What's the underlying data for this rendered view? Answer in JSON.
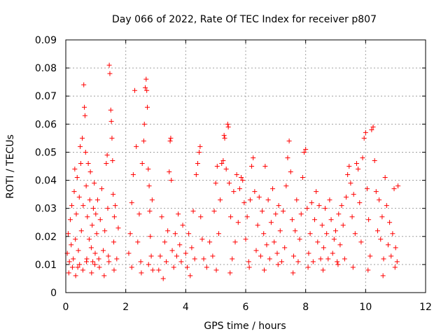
{
  "chart_data": {
    "type": "scatter",
    "title": "Day 066 of 2022, Rate Of TEC Index for receiver p807",
    "xlabel": "GPS time / hours",
    "ylabel": "ROTI / TECUs",
    "xlim": [
      0,
      12
    ],
    "ylim": [
      0,
      0.09
    ],
    "xticks": [
      "0",
      "2",
      "4",
      "6",
      "8",
      "10",
      "12"
    ],
    "yticks": [
      "0",
      "0.01",
      "0.02",
      "0.03",
      "0.04",
      "0.05",
      "0.06",
      "0.07",
      "0.08",
      "0.09"
    ],
    "grid": true,
    "marker": "+",
    "color": "#ff0000",
    "series": [
      {
        "name": "ROTI",
        "points": [
          [
            0.05,
            0.014
          ],
          [
            0.08,
            0.021
          ],
          [
            0.12,
            0.011
          ],
          [
            0.15,
            0.026
          ],
          [
            0.18,
            0.017
          ],
          [
            0.2,
            0.031
          ],
          [
            0.25,
            0.012
          ],
          [
            0.28,
            0.036
          ],
          [
            0.3,
            0.044
          ],
          [
            0.32,
            0.019
          ],
          [
            0.35,
            0.028
          ],
          [
            0.38,
            0.041
          ],
          [
            0.4,
            0.009
          ],
          [
            0.42,
            0.015
          ],
          [
            0.45,
            0.034
          ],
          [
            0.48,
            0.052
          ],
          [
            0.5,
            0.046
          ],
          [
            0.52,
            0.022
          ],
          [
            0.55,
            0.055
          ],
          [
            0.58,
            0.031
          ],
          [
            0.6,
            0.074
          ],
          [
            0.62,
            0.066
          ],
          [
            0.64,
            0.063
          ],
          [
            0.66,
            0.05
          ],
          [
            0.68,
            0.038
          ],
          [
            0.7,
            0.012
          ],
          [
            0.72,
            0.027
          ],
          [
            0.75,
            0.046
          ],
          [
            0.78,
            0.019
          ],
          [
            0.8,
            0.033
          ],
          [
            0.82,
            0.043
          ],
          [
            0.85,
            0.016
          ],
          [
            0.88,
            0.024
          ],
          [
            0.9,
            0.011
          ],
          [
            0.92,
            0.03
          ],
          [
            0.95,
            0.039
          ],
          [
            0.98,
            0.014
          ],
          [
            1.0,
            0.028
          ],
          [
            1.03,
            0.021
          ],
          [
            1.06,
            0.033
          ],
          [
            1.1,
            0.012
          ],
          [
            1.15,
            0.026
          ],
          [
            1.2,
            0.037
          ],
          [
            1.25,
            0.015
          ],
          [
            1.3,
            0.022
          ],
          [
            1.35,
            0.046
          ],
          [
            1.38,
            0.049
          ],
          [
            1.4,
            0.03
          ],
          [
            1.42,
            0.013
          ],
          [
            1.45,
            0.081
          ],
          [
            1.47,
            0.078
          ],
          [
            1.5,
            0.065
          ],
          [
            1.52,
            0.061
          ],
          [
            1.54,
            0.055
          ],
          [
            1.56,
            0.047
          ],
          [
            1.58,
            0.035
          ],
          [
            1.6,
            0.018
          ],
          [
            1.62,
            0.027
          ],
          [
            1.65,
            0.031
          ],
          [
            1.7,
            0.012
          ],
          [
            1.75,
            0.023
          ],
          [
            0.1,
            0.007
          ],
          [
            0.22,
            0.009
          ],
          [
            0.33,
            0.006
          ],
          [
            0.46,
            0.01
          ],
          [
            0.57,
            0.008
          ],
          [
            0.69,
            0.011
          ],
          [
            0.86,
            0.007
          ],
          [
            0.97,
            0.01
          ],
          [
            1.12,
            0.009
          ],
          [
            1.28,
            0.006
          ],
          [
            1.44,
            0.011
          ],
          [
            1.61,
            0.008
          ],
          [
            2.1,
            0.014
          ],
          [
            2.15,
            0.021
          ],
          [
            2.2,
            0.032
          ],
          [
            2.25,
            0.042
          ],
          [
            2.3,
            0.072
          ],
          [
            2.35,
            0.052
          ],
          [
            2.4,
            0.018
          ],
          [
            2.45,
            0.028
          ],
          [
            2.5,
            0.011
          ],
          [
            2.55,
            0.046
          ],
          [
            2.6,
            0.054
          ],
          [
            2.62,
            0.06
          ],
          [
            2.65,
            0.073
          ],
          [
            2.68,
            0.076
          ],
          [
            2.7,
            0.072
          ],
          [
            2.72,
            0.066
          ],
          [
            2.75,
            0.044
          ],
          [
            2.78,
            0.038
          ],
          [
            2.8,
            0.029
          ],
          [
            2.82,
            0.02
          ],
          [
            2.85,
            0.013
          ],
          [
            2.88,
            0.033
          ],
          [
            2.9,
            0.008
          ],
          [
            2.2,
            0.009
          ],
          [
            2.52,
            0.007
          ],
          [
            2.76,
            0.01
          ],
          [
            3.1,
            0.008
          ],
          [
            3.15,
            0.013
          ],
          [
            3.2,
            0.027
          ],
          [
            3.25,
            0.005
          ],
          [
            3.3,
            0.018
          ],
          [
            3.35,
            0.011
          ],
          [
            3.4,
            0.022
          ],
          [
            3.45,
            0.043
          ],
          [
            3.48,
            0.054
          ],
          [
            3.5,
            0.055
          ],
          [
            3.52,
            0.04
          ],
          [
            3.55,
            0.015
          ],
          [
            3.6,
            0.009
          ],
          [
            3.65,
            0.021
          ],
          [
            3.7,
            0.013
          ],
          [
            3.75,
            0.028
          ],
          [
            3.8,
            0.017
          ],
          [
            3.85,
            0.011
          ],
          [
            3.9,
            0.024
          ],
          [
            4.0,
            0.014
          ],
          [
            4.05,
            0.009
          ],
          [
            4.1,
            0.021
          ],
          [
            4.15,
            0.006
          ],
          [
            4.2,
            0.016
          ],
          [
            4.25,
            0.029
          ],
          [
            4.3,
            0.012
          ],
          [
            4.35,
            0.042
          ],
          [
            4.4,
            0.046
          ],
          [
            4.45,
            0.05
          ],
          [
            4.48,
            0.052
          ],
          [
            4.5,
            0.027
          ],
          [
            4.55,
            0.019
          ],
          [
            4.6,
            0.012
          ],
          [
            4.7,
            0.009
          ],
          [
            4.8,
            0.018
          ],
          [
            4.9,
            0.013
          ],
          [
            4.95,
            0.029
          ],
          [
            5.0,
            0.039
          ],
          [
            5.05,
            0.045
          ],
          [
            5.1,
            0.021
          ],
          [
            5.15,
            0.033
          ],
          [
            5.2,
            0.046
          ],
          [
            5.25,
            0.047
          ],
          [
            5.28,
            0.056
          ],
          [
            5.3,
            0.055
          ],
          [
            5.35,
            0.044
          ],
          [
            5.4,
            0.06
          ],
          [
            5.42,
            0.059
          ],
          [
            5.45,
            0.039
          ],
          [
            5.5,
            0.027
          ],
          [
            5.55,
            0.012
          ],
          [
            5.6,
            0.036
          ],
          [
            5.65,
            0.018
          ],
          [
            5.7,
            0.042
          ],
          [
            5.75,
            0.025
          ],
          [
            5.8,
            0.037
          ],
          [
            5.85,
            0.041
          ],
          [
            5.9,
            0.04
          ],
          [
            5.95,
            0.032
          ],
          [
            6.0,
            0.019
          ],
          [
            6.05,
            0.027
          ],
          [
            6.1,
            0.011
          ],
          [
            6.15,
            0.033
          ],
          [
            6.2,
            0.045
          ],
          [
            6.25,
            0.048
          ],
          [
            6.3,
            0.036
          ],
          [
            6.35,
            0.015
          ],
          [
            6.4,
            0.024
          ],
          [
            6.45,
            0.034
          ],
          [
            6.5,
            0.013
          ],
          [
            6.55,
            0.029
          ],
          [
            6.6,
            0.021
          ],
          [
            6.65,
            0.045
          ],
          [
            6.7,
            0.017
          ],
          [
            6.75,
            0.033
          ],
          [
            6.8,
            0.012
          ],
          [
            6.85,
            0.025
          ],
          [
            6.9,
            0.037
          ],
          [
            6.95,
            0.018
          ],
          [
            7.0,
            0.028
          ],
          [
            7.05,
            0.014
          ],
          [
            7.1,
            0.031
          ],
          [
            7.15,
            0.022
          ],
          [
            7.2,
            0.011
          ],
          [
            7.25,
            0.029
          ],
          [
            7.3,
            0.016
          ],
          [
            7.35,
            0.038
          ],
          [
            7.4,
            0.048
          ],
          [
            7.45,
            0.054
          ],
          [
            7.5,
            0.043
          ],
          [
            7.55,
            0.026
          ],
          [
            7.6,
            0.013
          ],
          [
            7.65,
            0.022
          ],
          [
            7.7,
            0.033
          ],
          [
            7.75,
            0.011
          ],
          [
            7.8,
            0.019
          ],
          [
            7.85,
            0.028
          ],
          [
            7.9,
            0.041
          ],
          [
            7.95,
            0.05
          ],
          [
            8.0,
            0.051
          ],
          [
            8.05,
            0.03
          ],
          [
            8.1,
            0.014
          ],
          [
            8.15,
            0.021
          ],
          [
            8.2,
            0.032
          ],
          [
            8.25,
            0.011
          ],
          [
            8.3,
            0.026
          ],
          [
            8.35,
            0.036
          ],
          [
            8.4,
            0.018
          ],
          [
            8.45,
            0.031
          ],
          [
            8.5,
            0.012
          ],
          [
            8.55,
            0.024
          ],
          [
            8.6,
            0.016
          ],
          [
            8.65,
            0.03
          ],
          [
            8.7,
            0.021
          ],
          [
            8.75,
            0.012
          ],
          [
            8.8,
            0.033
          ],
          [
            8.85,
            0.026
          ],
          [
            8.9,
            0.014
          ],
          [
            8.95,
            0.019
          ],
          [
            9.0,
            0.022
          ],
          [
            9.05,
            0.011
          ],
          [
            9.1,
            0.028
          ],
          [
            9.15,
            0.017
          ],
          [
            9.2,
            0.031
          ],
          [
            9.25,
            0.024
          ],
          [
            9.3,
            0.012
          ],
          [
            9.35,
            0.034
          ],
          [
            9.4,
            0.042
          ],
          [
            9.45,
            0.045
          ],
          [
            9.5,
            0.039
          ],
          [
            9.55,
            0.027
          ],
          [
            9.6,
            0.035
          ],
          [
            9.65,
            0.021
          ],
          [
            9.7,
            0.046
          ],
          [
            9.75,
            0.044
          ],
          [
            9.8,
            0.032
          ],
          [
            9.85,
            0.018
          ],
          [
            9.9,
            0.048
          ],
          [
            9.95,
            0.055
          ],
          [
            10.0,
            0.057
          ],
          [
            10.05,
            0.037
          ],
          [
            10.1,
            0.026
          ],
          [
            10.15,
            0.013
          ],
          [
            10.2,
            0.058
          ],
          [
            10.25,
            0.059
          ],
          [
            10.3,
            0.047
          ],
          [
            10.35,
            0.036
          ],
          [
            10.4,
            0.022
          ],
          [
            10.45,
            0.033
          ],
          [
            10.5,
            0.019
          ],
          [
            10.55,
            0.027
          ],
          [
            10.6,
            0.012
          ],
          [
            10.65,
            0.041
          ],
          [
            10.7,
            0.031
          ],
          [
            10.75,
            0.017
          ],
          [
            10.8,
            0.025
          ],
          [
            10.85,
            0.013
          ],
          [
            10.9,
            0.021
          ],
          [
            10.95,
            0.037
          ],
          [
            11.0,
            0.016
          ],
          [
            11.05,
            0.011
          ],
          [
            11.08,
            0.038
          ],
          [
            5.02,
            0.008
          ],
          [
            5.48,
            0.007
          ],
          [
            6.12,
            0.009
          ],
          [
            6.62,
            0.008
          ],
          [
            7.08,
            0.01
          ],
          [
            7.58,
            0.007
          ],
          [
            8.08,
            0.009
          ],
          [
            8.58,
            0.008
          ],
          [
            9.08,
            0.01
          ],
          [
            9.58,
            0.009
          ],
          [
            10.08,
            0.008
          ],
          [
            10.58,
            0.006
          ],
          [
            10.98,
            0.009
          ]
        ]
      }
    ]
  }
}
